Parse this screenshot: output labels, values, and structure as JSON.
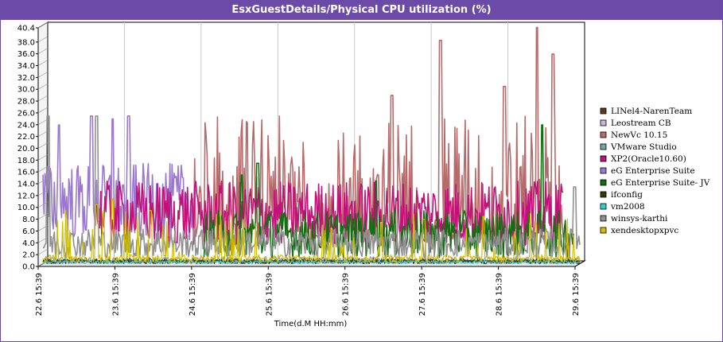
{
  "title": "EsxGuestDetails/Physical CPU utilization (%)",
  "chart_data": {
    "type": "line",
    "title": "EsxGuestDetails/Physical CPU utilization (%)",
    "xlabel": "Time(d.M HH:mm)",
    "ylabel": "",
    "ylim": [
      0,
      40.4
    ],
    "y_ticks": [
      "0.0",
      "2.0",
      "4.0",
      "6.0",
      "8.0",
      "10.0",
      "12.0",
      "14.0",
      "16.0",
      "18.0",
      "20.0",
      "22.0",
      "24.0",
      "26.0",
      "28.0",
      "30.0",
      "32.0",
      "34.0",
      "36.0",
      "38.0",
      "40.4"
    ],
    "y_tick_values": [
      0,
      2,
      4,
      6,
      8,
      10,
      12,
      14,
      16,
      18,
      20,
      22,
      24,
      26,
      28,
      30,
      32,
      34,
      36,
      38,
      40.4
    ],
    "x_ticks": [
      "22.6 15:39",
      "23.6 15:39",
      "24.6 15:39",
      "25.6 15:39",
      "26.6 15:39",
      "27.6 15:39",
      "28.6 15:39",
      "29.6 15:39"
    ],
    "grid": true,
    "legend_position": "right",
    "series": [
      {
        "name": "LINel4-NarenTeam",
        "color": "#5a3a1a",
        "style": "low",
        "min": 0,
        "max": 1.5,
        "start": 0,
        "end": 1
      },
      {
        "name": "Leostream CB",
        "color": "#c8b4dc",
        "style": "low",
        "min": 0,
        "max": 1,
        "start": 0,
        "end": 1
      },
      {
        "name": "NewVc 10.15",
        "color": "#b86a6a",
        "style": "spiky",
        "min": 3,
        "max": 25,
        "start": 0.28,
        "end": 0.97,
        "peaks": [
          [
            0.74,
            37.8
          ],
          [
            0.92,
            40
          ],
          [
            0.95,
            35.5
          ],
          [
            0.65,
            28.5
          ],
          [
            0.86,
            30
          ]
        ]
      },
      {
        "name": "VMware Studio",
        "color": "#7aa0a8",
        "style": "low",
        "min": 0,
        "max": 2,
        "start": 0,
        "end": 1
      },
      {
        "name": "XP2(Oracle10.60)",
        "color": "#c4107a",
        "style": "band",
        "min": 3,
        "max": 14,
        "start": 0.1,
        "end": 0.97
      },
      {
        "name": "eG Enterprise Suite",
        "color": "#9a78d0",
        "style": "band",
        "min": 4,
        "max": 17,
        "start": 0,
        "end": 0.28,
        "peaks": [
          [
            0.09,
            25
          ],
          [
            0.13,
            24.5
          ],
          [
            0.16,
            25
          ],
          [
            0.03,
            23.5
          ]
        ]
      },
      {
        "name": "eG Enterprise Suite- JV",
        "color": "#107010",
        "style": "band",
        "min": 1,
        "max": 9,
        "start": 0.3,
        "end": 0.99,
        "peaks": [
          [
            0.93,
            23.5
          ],
          [
            0.4,
            17
          ],
          [
            0.62,
            14
          ],
          [
            0.37,
            15
          ]
        ]
      },
      {
        "name": "ifconfig",
        "color": "#3a3a0a",
        "style": "low",
        "min": 0,
        "max": 1.2,
        "start": 0,
        "end": 1
      },
      {
        "name": "vm2008",
        "color": "#30d0d0",
        "style": "low",
        "min": 0,
        "max": 0.8,
        "start": 0,
        "end": 1
      },
      {
        "name": "winsys-karthi",
        "color": "#909090",
        "style": "band",
        "min": 1,
        "max": 6,
        "start": 0,
        "end": 1,
        "peaks": [
          [
            0.01,
            25
          ],
          [
            0.1,
            25
          ],
          [
            0.99,
            13
          ]
        ]
      },
      {
        "name": "xendesktopxpvc",
        "color": "#d0c000",
        "style": "spiky",
        "min": 0,
        "max": 2,
        "start": 0,
        "end": 1,
        "peaks": [
          [
            0.1,
            10
          ],
          [
            0.13,
            11
          ],
          [
            0.2,
            9
          ],
          [
            0.63,
            7
          ],
          [
            0.71,
            7.5
          ],
          [
            0.82,
            8
          ]
        ]
      }
    ]
  }
}
